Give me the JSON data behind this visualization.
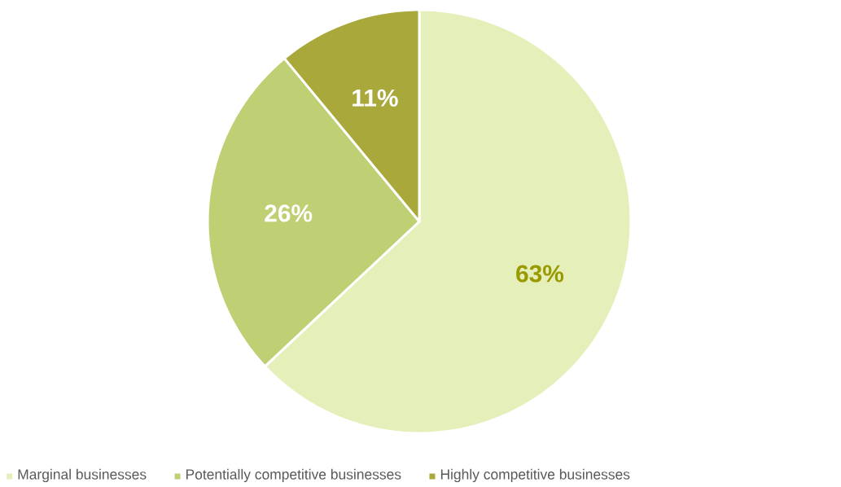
{
  "chart_data": {
    "type": "pie",
    "categories": [
      "Marginal businesses",
      "Potentially competitive businesses",
      "Highly competitive businesses"
    ],
    "values": [
      63,
      26,
      11
    ],
    "colors": [
      "#e5efb9",
      "#bfcf73",
      "#a9a83a"
    ],
    "value_labels": [
      "63%",
      "26%",
      "11%"
    ],
    "legend": "bottom"
  }
}
